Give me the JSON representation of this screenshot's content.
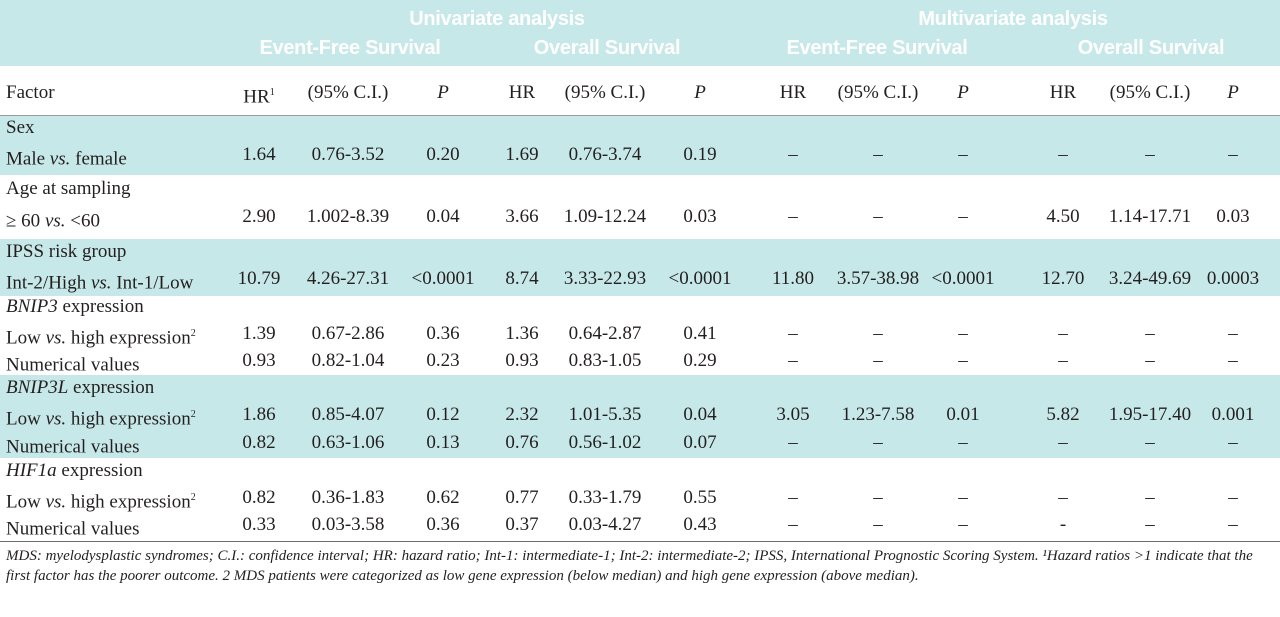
{
  "header": {
    "univariate": "Univariate analysis",
    "multivariate": "Multivariate analysis",
    "efs_uni": "Event-Free Survival",
    "os_uni": "Overall Survival",
    "efs_multi": "Event-Free Survival",
    "os_multi": "Overall Survival"
  },
  "columns": {
    "factor": "Factor",
    "hr1": "HR",
    "hr1_sup": "1",
    "ci1": "(95% C.I.)",
    "p1": "P",
    "hr2": "HR",
    "ci2": "(95% C.I.)",
    "p2": "P",
    "hr3": "HR",
    "ci3": "(95% C.I.)",
    "p3": "P",
    "hr4": "HR",
    "ci4": "(95% C.I.)",
    "p4": "P"
  },
  "groups": {
    "sex": "Sex",
    "age": "Age at sampling",
    "ipss": "IPSS risk group",
    "bnip3_gene": "BNIP3",
    "bnip3_rest": " expression",
    "bnip3l_gene": "BNIP3L",
    "bnip3l_rest": " expression",
    "hif_gene": "HIF1a",
    "hif_rest": "  expression"
  },
  "rows": [
    {
      "label_a": "Male ",
      "label_vs": "vs.",
      "label_b": " female",
      "sup": "",
      "v": [
        "1.64",
        "0.76-3.52",
        "0.20",
        "1.69",
        "0.76-3.74",
        "0.19",
        "–",
        "–",
        "–",
        "–",
        "–",
        "–"
      ]
    },
    {
      "label_a": "≥ 60 ",
      "label_vs": "vs.",
      "label_b": "  <60",
      "sup": "",
      "v": [
        "2.90",
        "1.002-8.39",
        "0.04",
        "3.66",
        "1.09-12.24",
        "0.03",
        "–",
        "–",
        "–",
        "4.50",
        "1.14-17.71",
        "0.03"
      ]
    },
    {
      "label_a": "Int-2/High ",
      "label_vs": "vs.",
      "label_b": " Int-1/Low",
      "sup": "",
      "v": [
        "10.79",
        "4.26-27.31",
        "<0.0001",
        "8.74",
        "3.33-22.93",
        "<0.0001",
        "11.80",
        "3.57-38.98",
        "<0.0001",
        "12.70",
        "3.24-49.69",
        "0.0003"
      ]
    },
    {
      "label_a": "Low ",
      "label_vs": "vs.",
      "label_b": " high expression",
      "sup": "2",
      "v": [
        "1.39",
        "0.67-2.86",
        "0.36",
        "1.36",
        "0.64-2.87",
        "0.41",
        "–",
        "–",
        "–",
        "–",
        "–",
        "–"
      ]
    },
    {
      "label_a": "Numerical values",
      "label_vs": "",
      "label_b": "",
      "sup": "",
      "v": [
        "0.93",
        "0.82-1.04",
        "0.23",
        "0.93",
        "0.83-1.05",
        "0.29",
        "–",
        "–",
        "–",
        "–",
        "–",
        "–"
      ]
    },
    {
      "label_a": "Low ",
      "label_vs": "vs.",
      "label_b": " high expression",
      "sup": "2",
      "v": [
        "1.86",
        "0.85-4.07",
        "0.12",
        "2.32",
        "1.01-5.35",
        "0.04",
        "3.05",
        "1.23-7.58",
        "0.01",
        "5.82",
        "1.95-17.40",
        "0.001"
      ]
    },
    {
      "label_a": "Numerical values",
      "label_vs": "",
      "label_b": "",
      "sup": "",
      "v": [
        "0.82",
        "0.63-1.06",
        "0.13",
        "0.76",
        "0.56-1.02",
        "0.07",
        "–",
        "–",
        "–",
        "–",
        "–",
        "–"
      ]
    },
    {
      "label_a": "Low ",
      "label_vs": "vs.",
      "label_b": " high expression",
      "sup": "2",
      "v": [
        "0.82",
        "0.36-1.83",
        "0.62",
        "0.77",
        "0.33-1.79",
        "0.55",
        "–",
        "–",
        "–",
        "–",
        "–",
        "–"
      ]
    },
    {
      "label_a": "Numerical values",
      "label_vs": "",
      "label_b": "",
      "sup": "",
      "v": [
        "0.33",
        "0.03-3.58",
        "0.36",
        "0.37",
        "0.03-4.27",
        "0.43",
        "–",
        "–",
        "–",
        "-",
        "–",
        "–"
      ]
    }
  ],
  "footnote": "MDS: myelodysplastic syndromes; C.I.: confidence interval; HR: hazard ratio; Int-1: intermediate-1; Int-2: intermediate-2; IPSS, International Prognostic Scoring System. ¹Hazard ratios >1 indicate that the first factor has the poorer outcome. 2 MDS patients were categorized as low gene expression (below median) and high gene expression (above median).",
  "colors": {
    "band": "#c7e8e8",
    "header_text": "#ffffff",
    "text": "#231f20"
  }
}
